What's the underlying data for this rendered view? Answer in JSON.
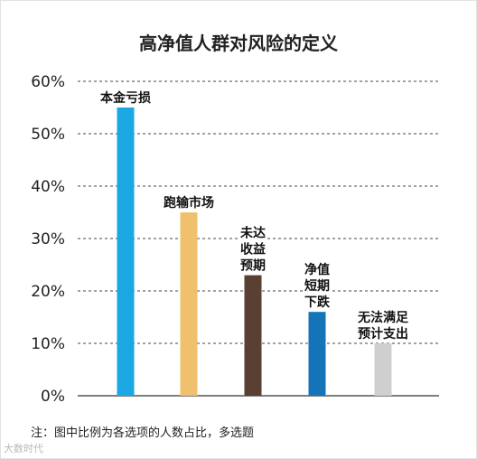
{
  "chart_data": {
    "type": "bar",
    "title": "高净值人群对风险的定义",
    "categories": [
      "本金亏损",
      "跑输市场",
      "未达收益预期",
      "净值短期下跌",
      "无法满足预计支出"
    ],
    "category_label_lines": [
      [
        "本金亏损"
      ],
      [
        "跑输市场"
      ],
      [
        "未达",
        "收益",
        "预期"
      ],
      [
        "净值",
        "短期",
        "下跌"
      ],
      [
        "无法满足",
        "预计支出"
      ]
    ],
    "values": [
      55,
      35,
      23,
      16,
      10
    ],
    "colors": [
      "#1ba7e2",
      "#efc16e",
      "#5a4033",
      "#1573b8",
      "#cfcfcf"
    ],
    "ylim": [
      0,
      60
    ],
    "yticks": [
      "0%",
      "10%",
      "20%",
      "30%",
      "40%",
      "50%",
      "60%"
    ],
    "grid": true,
    "xlabel": "",
    "ylabel": ""
  },
  "footnote": "注：图中比例为各选项的人数占比，多选题",
  "watermark": "大数时代"
}
